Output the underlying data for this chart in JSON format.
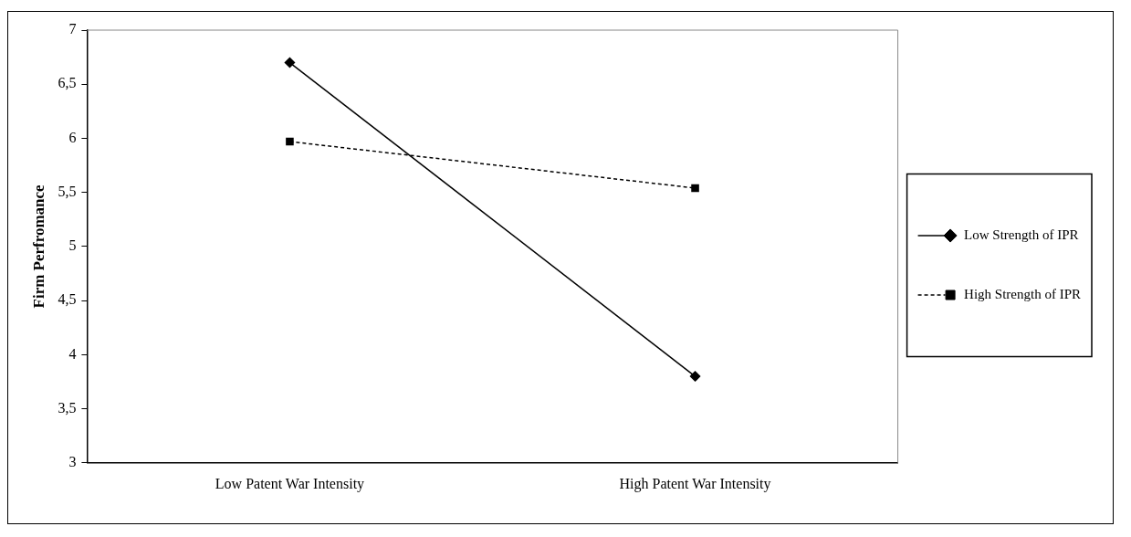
{
  "chart_data": {
    "type": "line",
    "ylabel": "Firm Perfromance",
    "categories": [
      "Low Patent War Intensity",
      "High Patent War Intensity"
    ],
    "series": [
      {
        "name": "Low Strength of IPR",
        "color": "#000000",
        "values": [
          6.7,
          3.8
        ],
        "marker": "diamond",
        "line_style": "solid"
      },
      {
        "name": "High Strength of IPR",
        "color": "#000000",
        "values": [
          5.97,
          5.54
        ],
        "marker": "square",
        "line_style": "dashed"
      }
    ],
    "ylim": [
      3,
      7
    ],
    "yticks": [
      3,
      {
        "value": 3.5,
        "label": "3,5"
      },
      4,
      {
        "value": 4.5,
        "label": "4,5"
      },
      5,
      {
        "value": 5.5,
        "label": "5,5"
      },
      6,
      {
        "value": 6.5,
        "label": "6,5"
      },
      7
    ],
    "grid": false,
    "legend": "right"
  }
}
